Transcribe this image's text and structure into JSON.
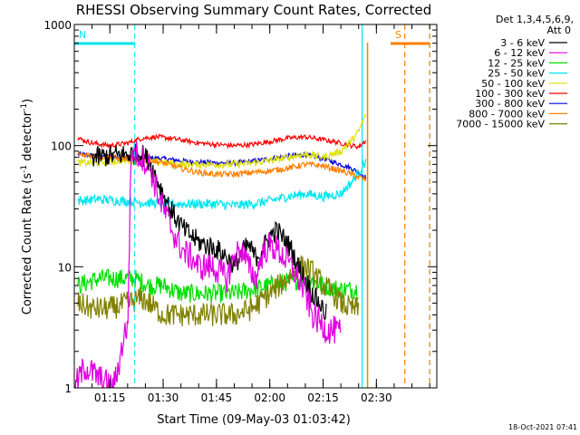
{
  "chart_data": {
    "type": "line",
    "title": "RHESSI Observing Summary Count Rates, Corrected",
    "xlabel": "Start Time (09-May-03 01:03:42)",
    "ylabel_prefix": "Corrected Count Rate (s",
    "ylabel_sup1": "-1",
    "ylabel_mid": " detector",
    "ylabel_sup2": "-1",
    "ylabel_suffix": ")",
    "yscale": "log",
    "ylim": [
      1,
      1000
    ],
    "xlim": [
      65,
      167
    ],
    "x_units": "minutes after 00:00 UT",
    "ytick_labels": [
      "1",
      "10",
      "100",
      "1000"
    ],
    "ytick_values": [
      1,
      10,
      100,
      1000
    ],
    "xtick_labels": [
      "01:15",
      "01:30",
      "01:45",
      "02:00",
      "02:15",
      "02:30"
    ],
    "xtick_values": [
      75,
      90,
      105,
      120,
      135,
      150
    ],
    "legend_header": [
      "Det 1,3,4,5,6,9,",
      "Att 0"
    ],
    "legend_position": "right",
    "timestamp": "18-Oct-2021 07:41",
    "flags": [
      {
        "label": "N",
        "color": "#00e5ee",
        "x_start": 65,
        "x_end": 82,
        "dash_x": 82
      },
      {
        "label": "S",
        "color": "#ff7f00",
        "x_start": 154,
        "x_end": 165,
        "dash_x": 165
      }
    ],
    "vertical_lines": [
      {
        "x": 146,
        "color": "#00e5ee",
        "style": "solid"
      },
      {
        "x": 158,
        "color": "#ff7f00",
        "style": "dashed"
      },
      {
        "x": 165,
        "color": "#00e5ee",
        "style": "dashed"
      }
    ],
    "gap": {
      "start": 147,
      "end": 165,
      "color": "#ff7f00"
    },
    "series": [
      {
        "name": "3 - 6 keV",
        "color": "#000000",
        "points": [
          [
            70,
            80
          ],
          [
            75,
            82
          ],
          [
            80,
            85
          ],
          [
            84,
            85
          ],
          [
            86,
            75
          ],
          [
            88,
            55
          ],
          [
            90,
            40
          ],
          [
            92,
            30
          ],
          [
            94,
            24
          ],
          [
            96,
            20
          ],
          [
            100,
            16
          ],
          [
            105,
            14
          ],
          [
            108,
            12
          ],
          [
            110,
            10
          ],
          [
            112,
            13
          ],
          [
            114,
            15
          ],
          [
            116,
            12
          ],
          [
            118,
            14
          ],
          [
            120,
            18
          ],
          [
            122,
            20
          ],
          [
            124,
            17
          ],
          [
            126,
            14
          ],
          [
            128,
            10
          ],
          [
            130,
            8
          ],
          [
            132,
            6
          ],
          [
            134,
            5
          ],
          [
            136,
            4
          ]
        ]
      },
      {
        "name": "6 - 12 keV",
        "color": "#e000e0",
        "points": [
          [
            65,
            1
          ],
          [
            68,
            1.5
          ],
          [
            72,
            1.2
          ],
          [
            76,
            1
          ],
          [
            78,
            1.8
          ],
          [
            79,
            2.8
          ],
          [
            80,
            3
          ],
          [
            81,
            90
          ],
          [
            84,
            80
          ],
          [
            86,
            70
          ],
          [
            88,
            45
          ],
          [
            90,
            30
          ],
          [
            92,
            22
          ],
          [
            94,
            16
          ],
          [
            96,
            13
          ],
          [
            98,
            12
          ],
          [
            100,
            10
          ],
          [
            104,
            10
          ],
          [
            106,
            9
          ],
          [
            108,
            8
          ],
          [
            110,
            12
          ],
          [
            112,
            14
          ],
          [
            114,
            10
          ],
          [
            116,
            8
          ],
          [
            118,
            13
          ],
          [
            120,
            15
          ],
          [
            122,
            14
          ],
          [
            124,
            12
          ],
          [
            126,
            10
          ],
          [
            128,
            8
          ],
          [
            130,
            6
          ],
          [
            132,
            4
          ],
          [
            134,
            3.5
          ],
          [
            136,
            3
          ],
          [
            138,
            3
          ],
          [
            140,
            2.8
          ]
        ]
      },
      {
        "name": "12 - 25 keV",
        "color": "#00e000",
        "points": [
          [
            66,
            7
          ],
          [
            72,
            8
          ],
          [
            78,
            8
          ],
          [
            82,
            8
          ],
          [
            86,
            7
          ],
          [
            90,
            7
          ],
          [
            95,
            6
          ],
          [
            100,
            6
          ],
          [
            105,
            6
          ],
          [
            110,
            6
          ],
          [
            115,
            6.5
          ],
          [
            120,
            7
          ],
          [
            125,
            7.5
          ],
          [
            130,
            8
          ],
          [
            135,
            7
          ],
          [
            140,
            6.5
          ],
          [
            145,
            6.5
          ]
        ]
      },
      {
        "name": "25 - 50 keV",
        "color": "#00e5ee",
        "points": [
          [
            66,
            35
          ],
          [
            72,
            36
          ],
          [
            78,
            35
          ],
          [
            84,
            34
          ],
          [
            90,
            33
          ],
          [
            95,
            33
          ],
          [
            100,
            33
          ],
          [
            105,
            33
          ],
          [
            110,
            32
          ],
          [
            115,
            33
          ],
          [
            120,
            35
          ],
          [
            125,
            38
          ],
          [
            130,
            40
          ],
          [
            135,
            38
          ],
          [
            140,
            40
          ],
          [
            143,
            50
          ],
          [
            145,
            60
          ],
          [
            147,
            75
          ]
        ]
      },
      {
        "name": "50 - 100 keV",
        "color": "#e0e000",
        "points": [
          [
            66,
            72
          ],
          [
            72,
            72
          ],
          [
            78,
            75
          ],
          [
            84,
            75
          ],
          [
            90,
            72
          ],
          [
            95,
            70
          ],
          [
            100,
            70
          ],
          [
            105,
            70
          ],
          [
            110,
            70
          ],
          [
            115,
            72
          ],
          [
            120,
            75
          ],
          [
            125,
            80
          ],
          [
            130,
            85
          ],
          [
            135,
            80
          ],
          [
            140,
            90
          ],
          [
            143,
            110
          ],
          [
            145,
            130
          ],
          [
            147,
            180
          ]
        ]
      },
      {
        "name": "100 - 300 keV",
        "color": "#ff0000",
        "points": [
          [
            66,
            115
          ],
          [
            70,
            105
          ],
          [
            75,
            100
          ],
          [
            80,
            105
          ],
          [
            84,
            115
          ],
          [
            88,
            118
          ],
          [
            92,
            115
          ],
          [
            96,
            110
          ],
          [
            100,
            105
          ],
          [
            105,
            102
          ],
          [
            110,
            100
          ],
          [
            115,
            102
          ],
          [
            120,
            108
          ],
          [
            125,
            115
          ],
          [
            130,
            118
          ],
          [
            135,
            112
          ],
          [
            140,
            105
          ],
          [
            143,
            100
          ],
          [
            145,
            98
          ],
          [
            147,
            110
          ]
        ]
      },
      {
        "name": "300 - 800 keV",
        "color": "#0000e0",
        "points": [
          [
            66,
            85
          ],
          [
            72,
            82
          ],
          [
            78,
            80
          ],
          [
            84,
            80
          ],
          [
            90,
            78
          ],
          [
            95,
            75
          ],
          [
            100,
            73
          ],
          [
            105,
            72
          ],
          [
            110,
            72
          ],
          [
            115,
            74
          ],
          [
            120,
            78
          ],
          [
            125,
            82
          ],
          [
            130,
            84
          ],
          [
            135,
            78
          ],
          [
            140,
            70
          ],
          [
            143,
            65
          ],
          [
            145,
            60
          ],
          [
            147,
            55
          ]
        ]
      },
      {
        "name": "800 - 7000 keV",
        "color": "#ff7f00",
        "points": [
          [
            66,
            85
          ],
          [
            72,
            82
          ],
          [
            78,
            78
          ],
          [
            84,
            78
          ],
          [
            90,
            72
          ],
          [
            95,
            65
          ],
          [
            100,
            60
          ],
          [
            105,
            58
          ],
          [
            110,
            58
          ],
          [
            115,
            60
          ],
          [
            120,
            62
          ],
          [
            125,
            65
          ],
          [
            130,
            70
          ],
          [
            135,
            68
          ],
          [
            140,
            62
          ],
          [
            143,
            58
          ],
          [
            145,
            55
          ],
          [
            147,
            52
          ]
        ]
      },
      {
        "name": "7000 - 15000 keV",
        "color": "#808000",
        "points": [
          [
            66,
            5
          ],
          [
            70,
            4.5
          ],
          [
            75,
            4.5
          ],
          [
            80,
            5
          ],
          [
            84,
            5.5
          ],
          [
            86,
            5
          ],
          [
            90,
            4
          ],
          [
            95,
            4
          ],
          [
            100,
            4
          ],
          [
            105,
            4
          ],
          [
            110,
            4
          ],
          [
            115,
            4.5
          ],
          [
            120,
            6
          ],
          [
            125,
            8
          ],
          [
            128,
            10
          ],
          [
            130,
            10
          ],
          [
            132,
            9
          ],
          [
            135,
            7
          ],
          [
            138,
            6
          ],
          [
            140,
            5
          ],
          [
            143,
            4.5
          ],
          [
            145,
            4.5
          ]
        ]
      }
    ]
  }
}
